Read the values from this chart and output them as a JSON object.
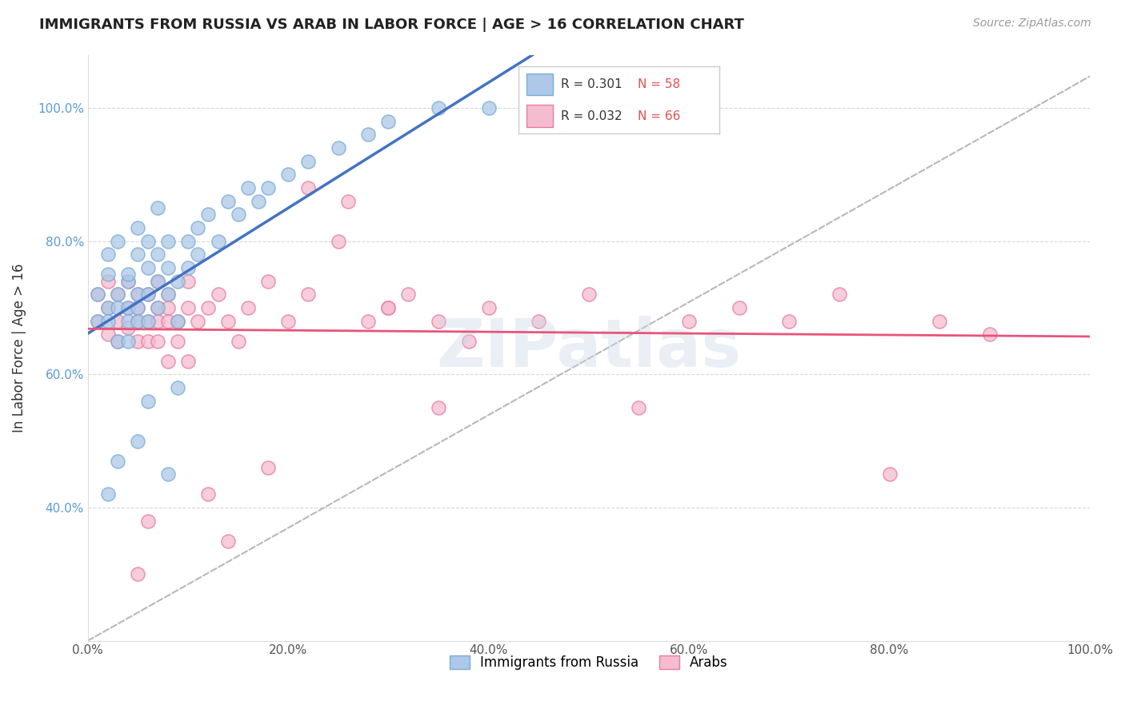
{
  "title": "IMMIGRANTS FROM RUSSIA VS ARAB IN LABOR FORCE | AGE > 16 CORRELATION CHART",
  "source_text": "Source: ZipAtlas.com",
  "ylabel": "In Labor Force | Age > 16",
  "watermark": "ZIPatlas",
  "legend_R_russia": "0.301",
  "legend_N_russia": "58",
  "legend_R_arab": "0.032",
  "legend_N_arab": "66",
  "xlim": [
    0.0,
    1.0
  ],
  "ylim": [
    0.2,
    1.08
  ],
  "ytick_positions": [
    0.4,
    0.6,
    0.8,
    1.0
  ],
  "ytick_labels": [
    "40.0%",
    "60.0%",
    "80.0%",
    "100.0%"
  ],
  "xtick_positions": [
    0.0,
    0.2,
    0.4,
    0.6,
    0.8,
    1.0
  ],
  "xtick_labels": [
    "0.0%",
    "20.0%",
    "40.0%",
    "60.0%",
    "80.0%",
    "100.0%"
  ],
  "legend_labels": [
    "Immigrants from Russia",
    "Arabs"
  ],
  "russia_color": "#adc8e8",
  "russia_edge_color": "#7aaed6",
  "arab_color": "#f5bcd0",
  "arab_edge_color": "#e87da0",
  "russia_line_color": "#4472c4",
  "arab_line_color": "#e8547a",
  "dashed_line_color": "#b8b8b8",
  "russia_scatter_x": [
    0.01,
    0.01,
    0.02,
    0.02,
    0.02,
    0.02,
    0.03,
    0.03,
    0.03,
    0.03,
    0.04,
    0.04,
    0.04,
    0.04,
    0.04,
    0.05,
    0.05,
    0.05,
    0.05,
    0.05,
    0.06,
    0.06,
    0.06,
    0.06,
    0.07,
    0.07,
    0.07,
    0.08,
    0.08,
    0.08,
    0.09,
    0.09,
    0.1,
    0.1,
    0.11,
    0.11,
    0.12,
    0.13,
    0.14,
    0.15,
    0.16,
    0.17,
    0.2,
    0.22,
    0.25,
    0.28,
    0.3,
    0.35,
    0.4,
    0.5,
    0.18,
    0.07,
    0.09,
    0.05,
    0.03,
    0.02,
    0.06,
    0.08
  ],
  "russia_scatter_y": [
    0.68,
    0.72,
    0.7,
    0.75,
    0.78,
    0.68,
    0.72,
    0.65,
    0.7,
    0.8,
    0.74,
    0.7,
    0.68,
    0.65,
    0.75,
    0.72,
    0.7,
    0.78,
    0.68,
    0.82,
    0.76,
    0.72,
    0.68,
    0.8,
    0.74,
    0.7,
    0.78,
    0.76,
    0.72,
    0.8,
    0.74,
    0.68,
    0.8,
    0.76,
    0.82,
    0.78,
    0.84,
    0.8,
    0.86,
    0.84,
    0.88,
    0.86,
    0.9,
    0.92,
    0.94,
    0.96,
    0.98,
    1.0,
    1.0,
    1.0,
    0.88,
    0.85,
    0.58,
    0.5,
    0.47,
    0.42,
    0.56,
    0.45
  ],
  "arab_scatter_x": [
    0.01,
    0.01,
    0.02,
    0.02,
    0.02,
    0.03,
    0.03,
    0.03,
    0.04,
    0.04,
    0.04,
    0.05,
    0.05,
    0.05,
    0.05,
    0.06,
    0.06,
    0.06,
    0.07,
    0.07,
    0.07,
    0.08,
    0.08,
    0.08,
    0.09,
    0.09,
    0.1,
    0.1,
    0.11,
    0.12,
    0.13,
    0.14,
    0.15,
    0.16,
    0.18,
    0.2,
    0.22,
    0.25,
    0.28,
    0.3,
    0.32,
    0.35,
    0.38,
    0.4,
    0.45,
    0.5,
    0.55,
    0.6,
    0.65,
    0.7,
    0.75,
    0.8,
    0.85,
    0.9,
    0.22,
    0.26,
    0.3,
    0.35,
    0.14,
    0.1,
    0.07,
    0.06,
    0.18,
    0.12,
    0.08,
    0.05
  ],
  "arab_scatter_y": [
    0.68,
    0.72,
    0.7,
    0.66,
    0.74,
    0.68,
    0.72,
    0.65,
    0.7,
    0.67,
    0.74,
    0.68,
    0.72,
    0.65,
    0.7,
    0.68,
    0.72,
    0.65,
    0.7,
    0.68,
    0.74,
    0.7,
    0.68,
    0.72,
    0.68,
    0.65,
    0.7,
    0.74,
    0.68,
    0.7,
    0.72,
    0.68,
    0.65,
    0.7,
    0.74,
    0.68,
    0.72,
    0.8,
    0.68,
    0.7,
    0.72,
    0.68,
    0.65,
    0.7,
    0.68,
    0.72,
    0.55,
    0.68,
    0.7,
    0.68,
    0.72,
    0.45,
    0.68,
    0.66,
    0.88,
    0.86,
    0.7,
    0.55,
    0.35,
    0.62,
    0.65,
    0.38,
    0.46,
    0.42,
    0.62,
    0.3
  ]
}
